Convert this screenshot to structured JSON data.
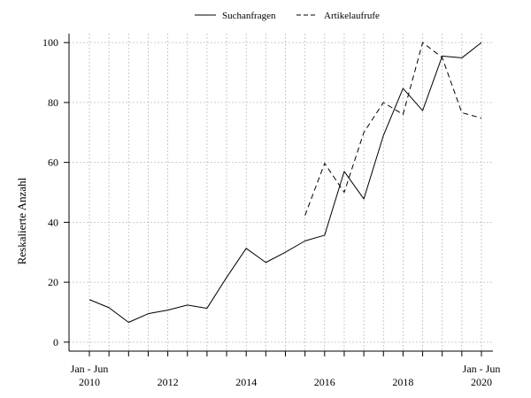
{
  "chart_data": {
    "type": "line",
    "ylabel": "Reskalierte Anzahl",
    "ylim": [
      -3,
      103
    ],
    "yticks": [
      0,
      20,
      40,
      60,
      80,
      100
    ],
    "x_labels": [
      {
        "period": "Jan - Jun",
        "year": "2010"
      },
      {
        "year": "2012"
      },
      {
        "year": "2014"
      },
      {
        "year": "2016"
      },
      {
        "year": "2018"
      },
      {
        "period": "Jan - Jun",
        "year": "2020"
      }
    ],
    "grid": true,
    "legend_position": "top",
    "series": [
      {
        "name": "Suchanfragen",
        "line_style": "solid",
        "points": [
          {
            "x": "Jan - Jun 2010",
            "y": 14.2
          },
          {
            "x": "Jul - Dez 2010",
            "y": 11.5
          },
          {
            "x": "Jan - Jun 2011",
            "y": 6.6
          },
          {
            "x": "Jul - Dez 2011",
            "y": 9.5
          },
          {
            "x": "Jan - Jun 2012",
            "y": 10.7
          },
          {
            "x": "Jul - Dez 2012",
            "y": 12.4
          },
          {
            "x": "Jan - Jun 2013",
            "y": 11.3
          },
          {
            "x": "Jul - Dez 2013",
            "y": 21.6
          },
          {
            "x": "Jan - Jun 2014",
            "y": 31.3
          },
          {
            "x": "Jul - Dez 2014",
            "y": 26.6
          },
          {
            "x": "Jan - Jun 2015",
            "y": 30.0
          },
          {
            "x": "Jul - Dez 2015",
            "y": 33.8
          },
          {
            "x": "Jan - Jun 2016",
            "y": 35.7
          },
          {
            "x": "Jul - Dez 2016",
            "y": 57.0
          },
          {
            "x": "Jan - Jun 2017",
            "y": 47.8
          },
          {
            "x": "Jul - Dez 2017",
            "y": 69.0
          },
          {
            "x": "Jan - Jun 2018",
            "y": 84.7
          },
          {
            "x": "Jul - Dez 2018",
            "y": 77.3
          },
          {
            "x": "Jan - Jun 2019",
            "y": 95.5
          },
          {
            "x": "Jul - Dez 2019",
            "y": 94.9
          },
          {
            "x": "Jan - Jun 2020",
            "y": 100.0
          }
        ]
      },
      {
        "name": "Artikelaufrufe",
        "line_style": "dashed",
        "points": [
          {
            "x": "Jul - Dez 2015",
            "y": 42.3
          },
          {
            "x": "Jan - Jun 2016",
            "y": 59.7
          },
          {
            "x": "Jul - Dez 2016",
            "y": 50.0
          },
          {
            "x": "Jan - Jun 2017",
            "y": 70.0
          },
          {
            "x": "Jul - Dez 2017",
            "y": 80.0
          },
          {
            "x": "Jan - Jun 2018",
            "y": 76.0
          },
          {
            "x": "Jul - Dez 2018",
            "y": 100.0
          },
          {
            "x": "Jan - Jun 2019",
            "y": 95.0
          },
          {
            "x": "Jul - Dez 2019",
            "y": 76.6
          },
          {
            "x": "Jan - Jun 2020",
            "y": 74.8
          }
        ]
      }
    ]
  }
}
